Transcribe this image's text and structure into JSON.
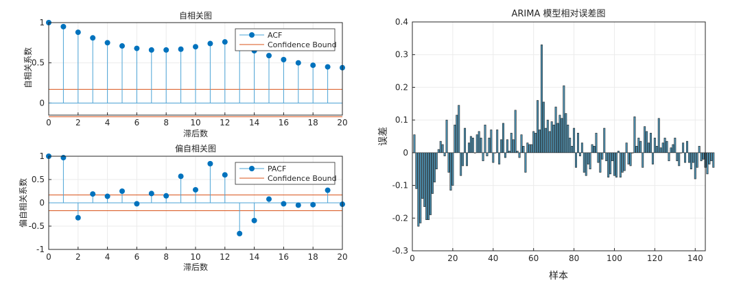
{
  "colors": {
    "marker": "#0072bd",
    "stem": "#4aa3d6",
    "bound": "#d95319",
    "bar_fill": "#4f95b6",
    "axis": "#262626",
    "grid": "#ebebeb"
  },
  "chart_data": [
    {
      "type": "stem",
      "title": "自相关图",
      "xlabel": "滞后数",
      "ylabel": "自相关系数",
      "xlim": [
        0,
        20
      ],
      "ylim": [
        -0.15,
        1
      ],
      "xticks": [
        0,
        2,
        4,
        6,
        8,
        10,
        12,
        14,
        16,
        18,
        20
      ],
      "yticks": [
        0,
        0.5,
        1
      ],
      "ytick_labels": [
        "0",
        "0.5",
        "1"
      ],
      "legend": {
        "location": "top-right",
        "series_label": "ACF",
        "bound_label": "Confidence Bound"
      },
      "x": [
        0,
        1,
        2,
        3,
        4,
        5,
        6,
        7,
        8,
        9,
        10,
        11,
        12,
        13,
        14,
        15,
        16,
        17,
        18,
        19,
        20
      ],
      "values": [
        1.0,
        0.95,
        0.88,
        0.81,
        0.75,
        0.71,
        0.68,
        0.66,
        0.66,
        0.67,
        0.7,
        0.74,
        0.76,
        0.7,
        0.65,
        0.59,
        0.54,
        0.5,
        0.47,
        0.45,
        0.44
      ],
      "bounds": [
        0.17,
        -0.17
      ]
    },
    {
      "type": "stem",
      "title": "偏自相关图",
      "xlabel": "滞后数",
      "ylabel": "偏自相关系数",
      "xlim": [
        0,
        20
      ],
      "ylim": [
        -1,
        1
      ],
      "xticks": [
        0,
        2,
        4,
        6,
        8,
        10,
        12,
        14,
        16,
        18,
        20
      ],
      "yticks": [
        -1,
        -0.5,
        0,
        0.5,
        1
      ],
      "ytick_labels": [
        "-1",
        "-0.5",
        "0",
        "0.5",
        "1"
      ],
      "legend": {
        "location": "top-right",
        "series_label": "PACF",
        "bound_label": "Confidence Bound"
      },
      "x": [
        0,
        1,
        2,
        3,
        4,
        5,
        6,
        7,
        8,
        9,
        10,
        11,
        12,
        13,
        14,
        15,
        16,
        17,
        18,
        19,
        20
      ],
      "values": [
        1.0,
        0.97,
        -0.32,
        0.19,
        0.14,
        0.25,
        -0.02,
        0.2,
        0.15,
        0.57,
        0.28,
        0.84,
        0.6,
        -0.66,
        -0.38,
        0.08,
        -0.02,
        -0.05,
        -0.04,
        0.27,
        -0.03
      ],
      "bounds": [
        0.17,
        -0.17
      ]
    },
    {
      "type": "bar",
      "title": "ARIMA 模型相对误差图",
      "xlabel": "样本",
      "ylabel": "误差",
      "xlim": [
        0,
        145
      ],
      "ylim": [
        -0.3,
        0.4
      ],
      "xticks": [
        0,
        20,
        40,
        60,
        80,
        100,
        120,
        140
      ],
      "yticks": [
        -0.3,
        -0.2,
        -0.1,
        0,
        0.1,
        0.2,
        0.3,
        0.4
      ],
      "ytick_labels": [
        "-0.3",
        "-0.2",
        "-0.1",
        "0",
        "0.1",
        "0.2",
        "0.3",
        "0.4"
      ],
      "values": [
        0.055,
        -0.11,
        -0.225,
        -0.215,
        -0.14,
        -0.165,
        -0.205,
        -0.205,
        -0.19,
        -0.125,
        -0.09,
        -0.05,
        0.01,
        0.035,
        0.025,
        -0.01,
        0.1,
        -0.06,
        -0.115,
        -0.1,
        0.085,
        0.115,
        0.145,
        -0.07,
        -0.04,
        0.075,
        -0.04,
        0.03,
        0.05,
        0.045,
        0.0,
        0.055,
        0.065,
        0.045,
        -0.025,
        0.085,
        -0.01,
        0.045,
        0.07,
        -0.03,
        0.0,
        0.07,
        -0.035,
        0.04,
        0.09,
        -0.015,
        0.04,
        0.005,
        0.06,
        0.04,
        0.13,
        0.005,
        -0.015,
        0.055,
        0.02,
        -0.06,
        0.03,
        0.025,
        0.025,
        0.065,
        0.06,
        0.16,
        0.07,
        0.33,
        0.155,
        0.075,
        0.1,
        0.065,
        0.095,
        0.085,
        0.14,
        0.09,
        0.115,
        0.105,
        0.205,
        0.12,
        0.085,
        0.045,
        0.02,
        0.075,
        -0.045,
        0.06,
        -0.01,
        0.03,
        -0.06,
        -0.07,
        -0.035,
        -0.05,
        0.025,
        0.02,
        0.06,
        -0.03,
        -0.06,
        -0.02,
        0.075,
        -0.025,
        -0.075,
        -0.065,
        -0.025,
        -0.07,
        -0.075,
        0.005,
        -0.075,
        -0.06,
        -0.055,
        0.03,
        -0.035,
        -0.04,
        0.0,
        0.11,
        0.02,
        0.045,
        0.035,
        -0.045,
        0.08,
        0.065,
        0.03,
        0.06,
        -0.035,
        0.045,
        0.02,
        0.105,
        0.015,
        0.03,
        0.045,
        0.035,
        -0.025,
        0.015,
        0.025,
        0.045,
        -0.025,
        -0.04,
        0.0,
        0.03,
        -0.03,
        0.035,
        -0.03,
        -0.05,
        -0.03,
        -0.08,
        -0.045,
        0.02,
        -0.025,
        -0.02,
        -0.045,
        -0.065,
        -0.035,
        -0.025,
        -0.045
      ]
    }
  ]
}
